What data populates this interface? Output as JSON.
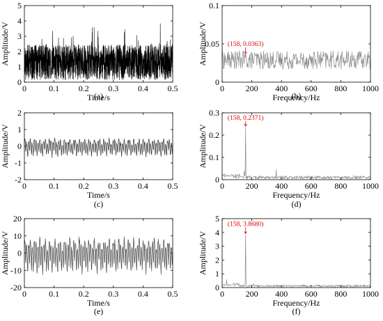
{
  "chart_data": [
    {
      "id": "a",
      "type": "line",
      "caption": "(a)",
      "xlabel": "Time/s",
      "ylabel": "Amplitude/V",
      "xlim": [
        0,
        0.5
      ],
      "ylim": [
        0,
        5
      ],
      "xticks": [
        0,
        0.1,
        0.2,
        0.3,
        0.4,
        0.5
      ],
      "xtick_labels": [
        "0",
        "0.1",
        "0.2",
        "0.3",
        "0.4",
        "0.5"
      ],
      "yticks": [
        0,
        1,
        2,
        3,
        4,
        5
      ],
      "ytick_labels": [
        "0",
        "1",
        "2",
        "3",
        "4",
        "5"
      ],
      "series": [
        {
          "signal": "noisy-time",
          "mean": 1.3,
          "spread": 1.0,
          "min": 0.05,
          "max": 4.6,
          "color": "#000000",
          "samples": 1400
        }
      ]
    },
    {
      "id": "b",
      "type": "line",
      "caption": "(b)",
      "xlabel": "Frequency/Hz",
      "ylabel": "Amplitude/V",
      "xlim": [
        0,
        1000
      ],
      "ylim": [
        0,
        0.1
      ],
      "xticks": [
        0,
        200,
        400,
        600,
        800,
        1000
      ],
      "xtick_labels": [
        "0",
        "200",
        "400",
        "600",
        "800",
        "1000"
      ],
      "yticks": [
        0,
        0.05,
        0.1
      ],
      "ytick_labels": [
        "0",
        "0.05",
        "0.1"
      ],
      "series": [
        {
          "signal": "noise-spectrum",
          "base": 0.029,
          "spread": 0.012,
          "min": 0.012,
          "max": 0.052,
          "color": "#888888",
          "samples": 330
        }
      ],
      "annotation": {
        "text": "(158, 0.0363)",
        "x": 158,
        "y": 0.0363,
        "color": "#e00000"
      }
    },
    {
      "id": "c",
      "type": "line",
      "caption": "(c)",
      "xlabel": "Time/s",
      "ylabel": "Amplitude/V",
      "xlim": [
        0,
        0.5
      ],
      "ylim": [
        -2,
        2
      ],
      "xticks": [
        0,
        0.1,
        0.2,
        0.3,
        0.4,
        0.5
      ],
      "xtick_labels": [
        "0",
        "0.1",
        "0.2",
        "0.3",
        "0.4",
        "0.5"
      ],
      "yticks": [
        -2,
        -1,
        0,
        1,
        2
      ],
      "ytick_labels": [
        "-2",
        "-1",
        "0",
        "1",
        "2"
      ],
      "series": [
        {
          "signal": "periodic-time",
          "amplitude": 0.35,
          "min": -1.0,
          "max": 1.0,
          "color": "#333333",
          "samples": 600
        }
      ]
    },
    {
      "id": "d",
      "type": "line",
      "caption": "(d)",
      "xlabel": "Frequency/Hz",
      "ylabel": "Amplitude/V",
      "xlim": [
        0,
        1000
      ],
      "ylim": [
        0,
        0.3
      ],
      "xticks": [
        0,
        200,
        400,
        600,
        800,
        1000
      ],
      "xtick_labels": [
        "0",
        "200",
        "400",
        "600",
        "800",
        "1000"
      ],
      "yticks": [
        0,
        0.1,
        0.2,
        0.3
      ],
      "ytick_labels": [
        "0",
        "0.1",
        "0.2",
        "0.3"
      ],
      "series": [
        {
          "signal": "peak-spectrum",
          "floor": 0.01,
          "peaks": [
            [
              150,
              0.06
            ],
            [
              158,
              0.2371
            ],
            [
              190,
              0.03
            ],
            [
              215,
              0.02
            ],
            [
              320,
              0.015
            ],
            [
              365,
              0.05
            ],
            [
              475,
              0.015
            ]
          ],
          "color": "#888888",
          "samples": 330
        }
      ],
      "annotation": {
        "text": "(158, 0.2371)",
        "x": 158,
        "y": 0.2371,
        "color": "#e00000"
      }
    },
    {
      "id": "e",
      "type": "line",
      "caption": "(e)",
      "xlabel": "Time/s",
      "ylabel": "Amplitude/V",
      "xlim": [
        0,
        0.5
      ],
      "ylim": [
        -20,
        20
      ],
      "xticks": [
        0,
        0.1,
        0.2,
        0.3,
        0.4,
        0.5
      ],
      "xtick_labels": [
        "0",
        "0.1",
        "0.2",
        "0.3",
        "0.4",
        "0.5"
      ],
      "yticks": [
        -20,
        -10,
        0,
        10,
        20
      ],
      "ytick_labels": [
        "-20",
        "-10",
        "0",
        "10",
        "20"
      ],
      "series": [
        {
          "signal": "periodic-time",
          "amplitude": 6.5,
          "min": -13,
          "max": 13,
          "color": "#444444",
          "samples": 600
        }
      ]
    },
    {
      "id": "f",
      "type": "line",
      "caption": "(f)",
      "xlabel": "Frequency/Hz",
      "ylabel": "Amplitude/V",
      "xlim": [
        0,
        1000
      ],
      "ylim": [
        0,
        5
      ],
      "xticks": [
        0,
        200,
        400,
        600,
        800,
        1000
      ],
      "xtick_labels": [
        "0",
        "200",
        "400",
        "600",
        "800",
        "1000"
      ],
      "yticks": [
        0,
        1,
        2,
        3,
        4,
        5
      ],
      "ytick_labels": [
        "0",
        "1",
        "2",
        "3",
        "4",
        "5"
      ],
      "series": [
        {
          "signal": "peak-spectrum",
          "floor": 0.12,
          "peaks": [
            [
              30,
              0.6
            ],
            [
              80,
              0.4
            ],
            [
              158,
              3.868
            ],
            [
              210,
              0.3
            ],
            [
              320,
              0.2
            ]
          ],
          "color": "#888888",
          "samples": 330
        }
      ],
      "annotation": {
        "text": "(158, 3.8680)",
        "x": 158,
        "y": 3.868,
        "color": "#e00000"
      }
    }
  ]
}
